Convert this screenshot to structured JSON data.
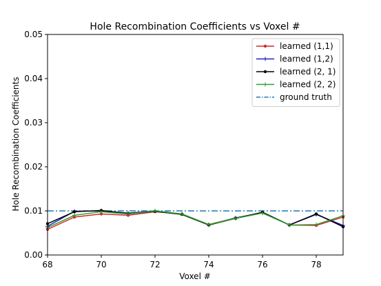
{
  "chart_data": {
    "type": "line",
    "title": "Hole Recombination Coefficients vs Voxel #",
    "xlabel": "Voxel #",
    "ylabel": "Hole Recombination Coefficients",
    "xlim": [
      68,
      79
    ],
    "ylim": [
      0.0,
      0.05
    ],
    "xticks": [
      68,
      70,
      72,
      74,
      76,
      78
    ],
    "xtick_labels": [
      "68",
      "70",
      "72",
      "74",
      "76",
      "78"
    ],
    "yticks": [
      0.0,
      0.01,
      0.02,
      0.03,
      0.04,
      0.05
    ],
    "ytick_labels": [
      "0.00",
      "0.01",
      "0.02",
      "0.03",
      "0.04",
      "0.05"
    ],
    "grid": false,
    "legend_position": "top-right",
    "x": [
      68,
      69,
      70,
      71,
      72,
      73,
      74,
      75,
      76,
      77,
      78,
      79
    ],
    "series": [
      {
        "name": "learned (1,1)",
        "color": "#d62728",
        "marker": "dot",
        "values": [
          0.0058,
          0.0086,
          0.0093,
          0.009,
          0.0098,
          0.0093,
          0.0069,
          0.0084,
          0.0096,
          0.0068,
          0.0067,
          0.0086
        ]
      },
      {
        "name": "learned (1,2)",
        "color": "#1f1fbf",
        "marker": "plus",
        "values": [
          0.0065,
          0.0099,
          0.01,
          0.0095,
          0.01,
          0.0093,
          0.0068,
          0.0084,
          0.0096,
          0.0068,
          0.0092,
          0.0067
        ]
      },
      {
        "name": "learned (2, 1)",
        "color": "#000000",
        "marker": "dot",
        "values": [
          0.0071,
          0.0098,
          0.0101,
          0.0094,
          0.0099,
          0.0092,
          0.0068,
          0.0083,
          0.0097,
          0.0068,
          0.0093,
          0.0064
        ]
      },
      {
        "name": "learned (2, 2)",
        "color": "#2ca02c",
        "marker": "plus",
        "values": [
          0.0062,
          0.009,
          0.0098,
          0.0093,
          0.01,
          0.0093,
          0.0069,
          0.0083,
          0.0095,
          0.0068,
          0.0069,
          0.0089
        ]
      }
    ],
    "reference_lines": [
      {
        "name": "ground truth",
        "color": "#1f77b4",
        "style": "dash-dot",
        "y": 0.01
      }
    ]
  }
}
